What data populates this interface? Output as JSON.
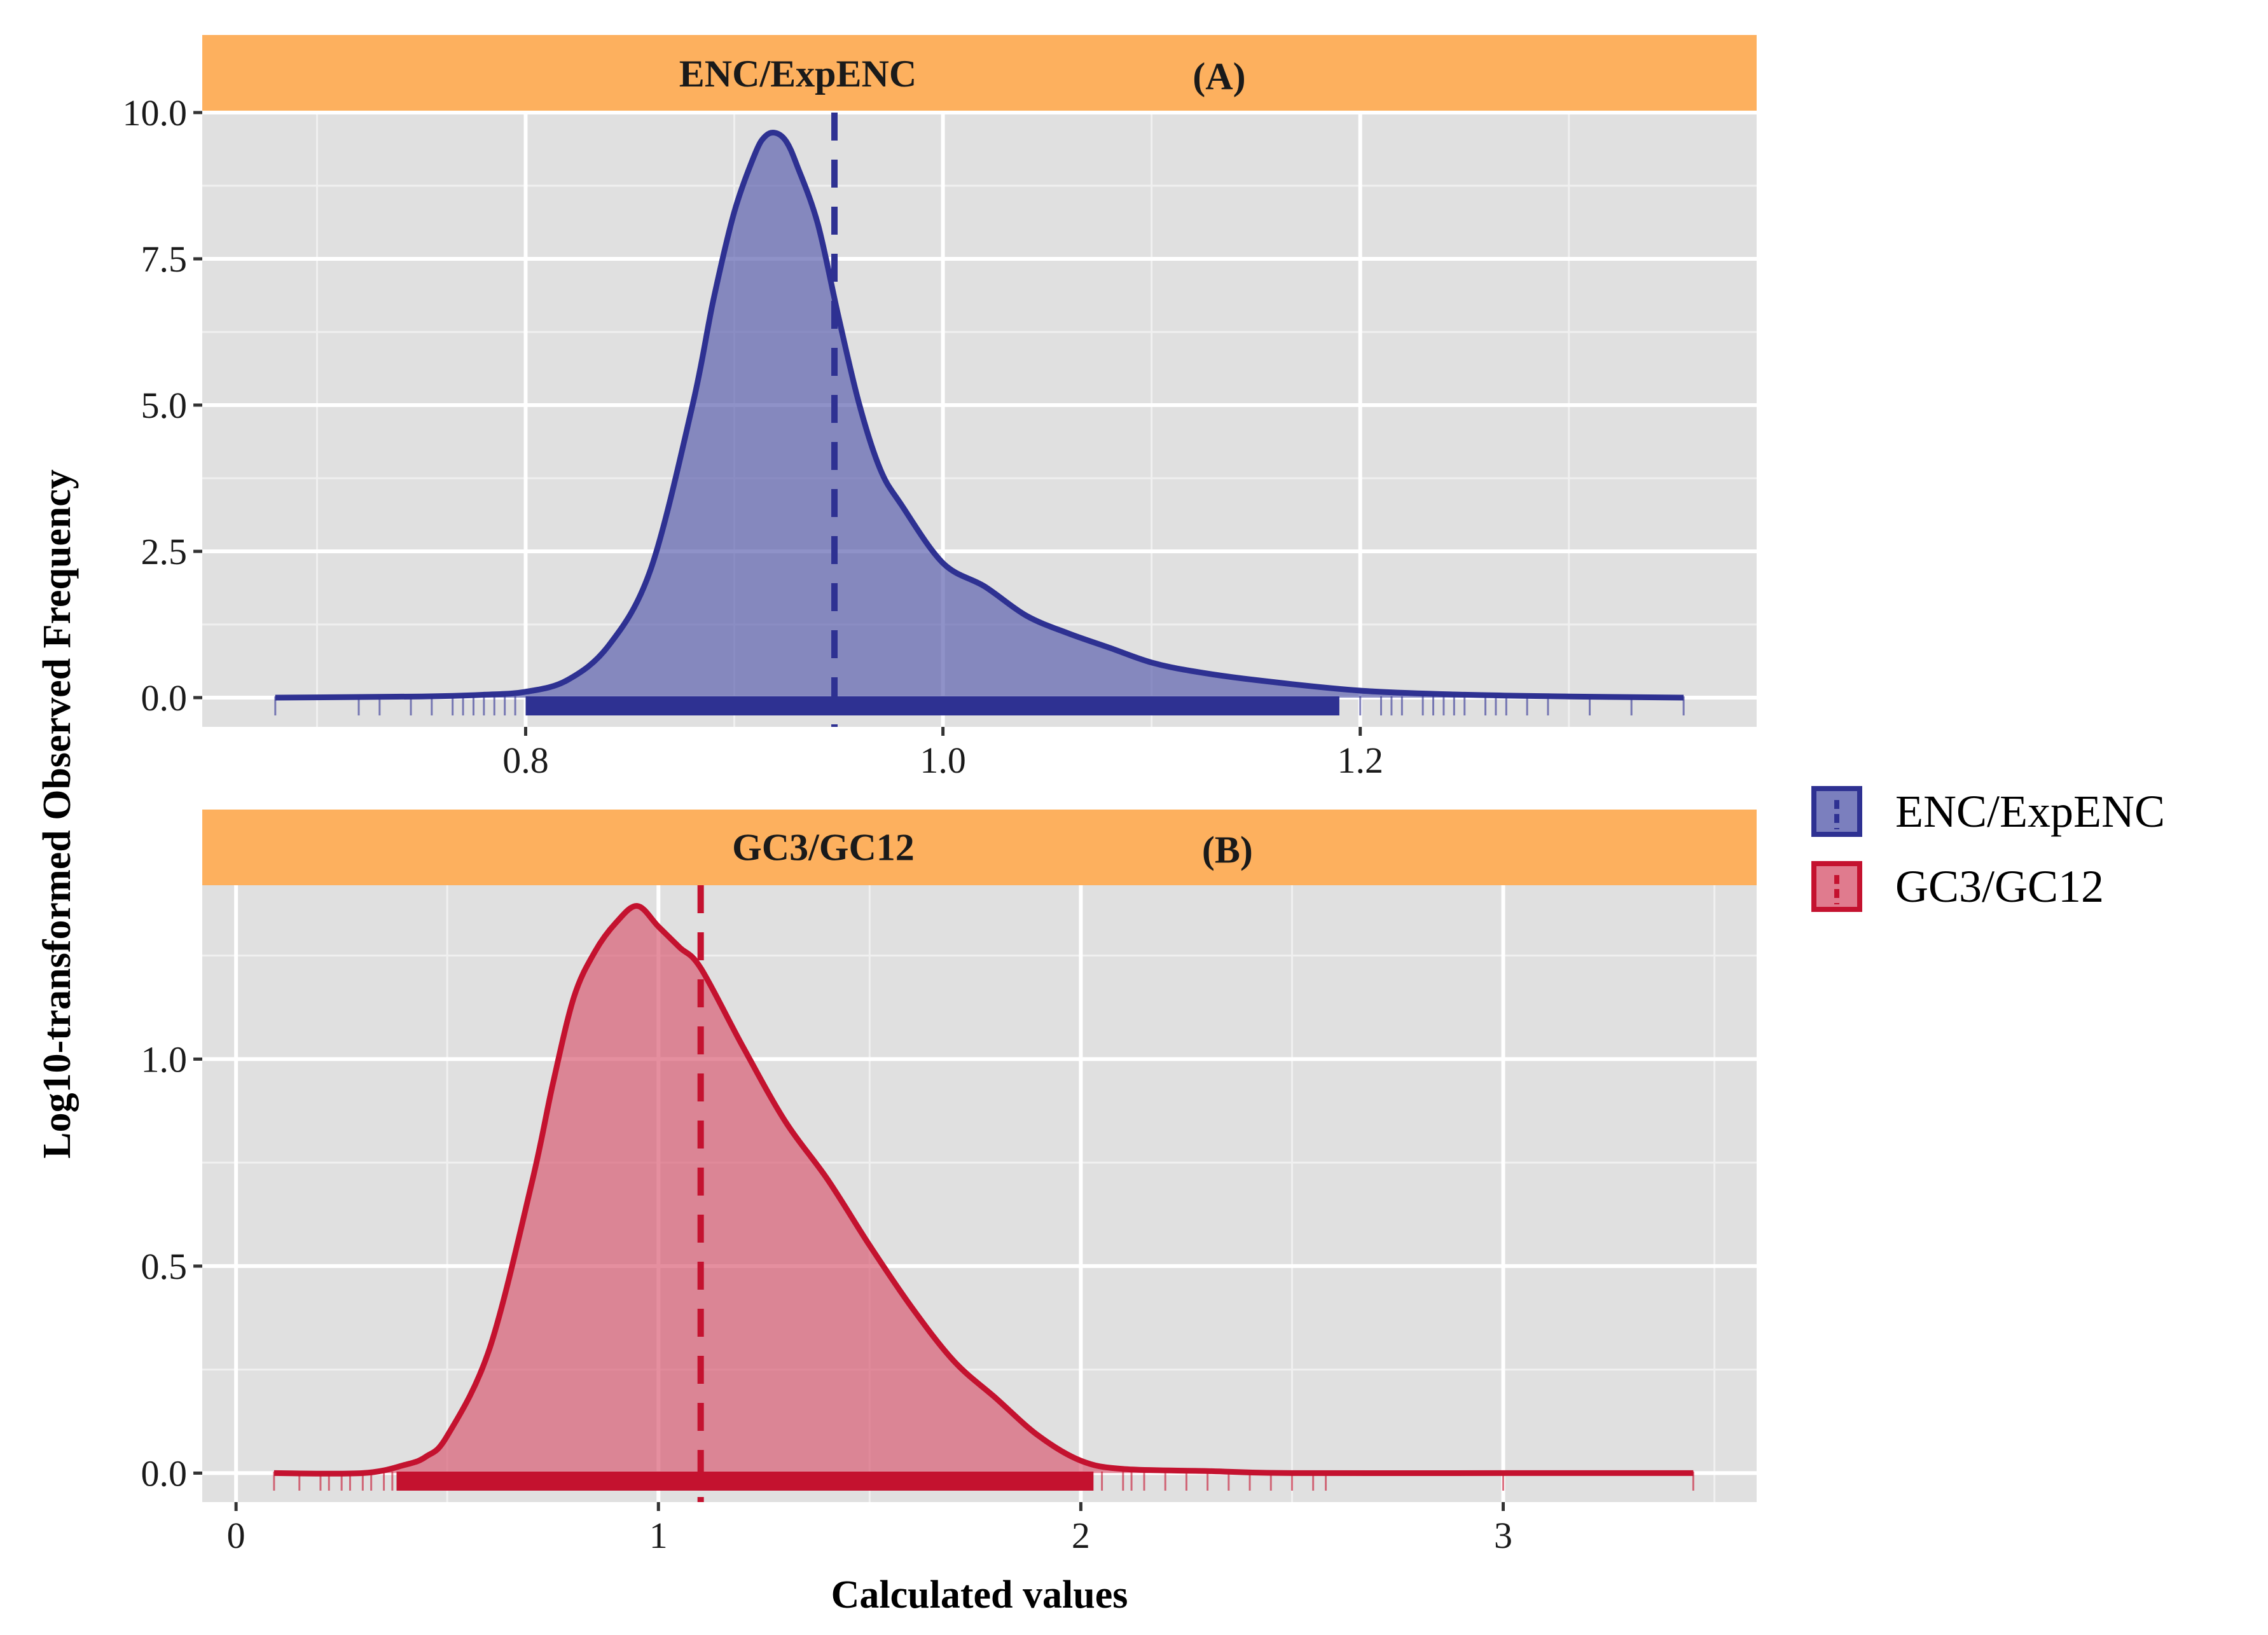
{
  "chart_data": [
    {
      "type": "area",
      "panel": "A",
      "strip_title": "ENC/ExpENC",
      "strip_tag": "(A)",
      "color": "#2E3192",
      "fill_color": "#5A5FAE",
      "strip_color": "#FDB05E",
      "xlim": [
        0.645,
        1.39
      ],
      "ylim": [
        -0.5,
        10.0
      ],
      "x_ticks": [
        0.8,
        1.0,
        1.2
      ],
      "x_tick_labels": [
        "0.8",
        "1.0",
        "1.2"
      ],
      "y_ticks": [
        0.0,
        2.5,
        5.0,
        7.5,
        10.0
      ],
      "y_tick_labels": [
        "0.0",
        "2.5",
        "5.0",
        "7.5",
        "10.0"
      ],
      "mean_line": 0.948,
      "density": {
        "x": [
          0.68,
          0.75,
          0.78,
          0.8,
          0.82,
          0.84,
          0.86,
          0.88,
          0.89,
          0.9,
          0.91,
          0.915,
          0.92,
          0.925,
          0.93,
          0.94,
          0.95,
          0.96,
          0.97,
          0.98,
          1.0,
          1.02,
          1.04,
          1.06,
          1.08,
          1.1,
          1.12,
          1.15,
          1.2,
          1.25,
          1.3,
          1.355
        ],
        "y": [
          0.0,
          0.02,
          0.05,
          0.1,
          0.3,
          0.9,
          2.2,
          5.0,
          6.8,
          8.3,
          9.3,
          9.6,
          9.65,
          9.5,
          9.1,
          8.1,
          6.5,
          5.0,
          3.9,
          3.3,
          2.3,
          1.9,
          1.4,
          1.1,
          0.85,
          0.6,
          0.45,
          0.3,
          0.12,
          0.05,
          0.02,
          0.0
        ]
      },
      "rug": [
        0.68,
        0.72,
        0.73,
        0.745,
        0.755,
        0.765,
        0.77,
        0.775,
        0.78,
        0.785,
        0.79,
        0.795,
        1.2,
        1.21,
        1.215,
        1.22,
        1.23,
        1.235,
        1.24,
        1.245,
        1.25,
        1.26,
        1.265,
        1.27,
        1.28,
        1.29,
        1.31,
        1.33,
        1.355
      ]
    },
    {
      "type": "area",
      "panel": "B",
      "strip_title": "GC3/GC12",
      "strip_tag": "(B)",
      "color": "#C4122F",
      "fill_color": "#D85A72",
      "strip_color": "#FDB05E",
      "xlim": [
        -0.08,
        3.6
      ],
      "ylim": [
        -0.07,
        1.42
      ],
      "x_ticks": [
        0,
        1,
        2,
        3
      ],
      "x_tick_labels": [
        "0",
        "1",
        "2",
        "3"
      ],
      "y_ticks": [
        0.0,
        0.5,
        1.0
      ],
      "y_tick_labels": [
        "0.0",
        "0.5",
        "1.0"
      ],
      "mean_line": 1.1,
      "density": {
        "x": [
          0.09,
          0.3,
          0.4,
          0.45,
          0.5,
          0.6,
          0.7,
          0.75,
          0.8,
          0.85,
          0.9,
          0.95,
          1.0,
          1.05,
          1.1,
          1.2,
          1.3,
          1.4,
          1.5,
          1.6,
          1.7,
          1.8,
          1.9,
          2.0,
          2.1,
          2.3,
          2.5,
          3.0,
          3.45
        ],
        "y": [
          0.0,
          0.0,
          0.02,
          0.04,
          0.09,
          0.3,
          0.7,
          0.94,
          1.15,
          1.26,
          1.33,
          1.37,
          1.32,
          1.27,
          1.22,
          1.03,
          0.85,
          0.71,
          0.55,
          0.4,
          0.27,
          0.18,
          0.09,
          0.03,
          0.01,
          0.005,
          0.0,
          0.0,
          0.0
        ]
      },
      "rug": [
        0.09,
        0.15,
        0.2,
        0.22,
        0.25,
        0.27,
        0.3,
        0.32,
        0.35,
        0.37,
        2.05,
        2.1,
        2.12,
        2.15,
        2.2,
        2.25,
        2.3,
        2.35,
        2.4,
        2.45,
        2.5,
        2.55,
        2.58,
        3.0,
        3.45
      ]
    }
  ],
  "labels": {
    "y_axis_title": "Log10-transformed Observed Frequency",
    "x_axis_title": "Calculated values"
  },
  "legend": {
    "items": [
      {
        "label": "ENC/ExpENC",
        "color": "#2E3192",
        "fill": "#5A5FAE"
      },
      {
        "label": "GC3/GC12",
        "color": "#C4122F",
        "fill": "#D85A72"
      }
    ]
  },
  "theme": {
    "panel_bg": "#E0E0E0",
    "grid_major": "#FFFFFF",
    "grid_minor": "#F0F0F0"
  }
}
